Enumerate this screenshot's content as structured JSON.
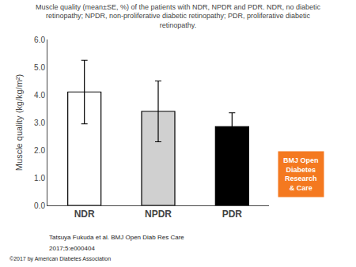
{
  "chart_data": {
    "type": "bar",
    "title": "Muscle quality (mean±SE, %) of the patients with NDR, NPDR and PDR. NDR, no diabetic\nretinopathy; NPDR, non-proliferative diabetic retinopathy; PDR, proliferative diabetic\nretinopathy.",
    "categories": [
      "NDR",
      "NPDR",
      "PDR"
    ],
    "values": [
      4.1,
      3.4,
      2.85
    ],
    "errors": [
      1.15,
      1.1,
      0.5
    ],
    "colors": [
      "#ffffff",
      "#d0d0d0",
      "#000000"
    ],
    "ylabel": "Muscle quality (kg/kg/m²)",
    "ylim": [
      0.0,
      6.0
    ],
    "yticks": [
      {
        "value": 0.0,
        "label": "0.0"
      },
      {
        "value": 1.0,
        "label": "1.0"
      },
      {
        "value": 2.0,
        "label": "2.0"
      },
      {
        "value": 3.0,
        "label": "3.0"
      },
      {
        "value": 4.0,
        "label": "4.0"
      },
      {
        "value": 5.0,
        "label": "5.0"
      },
      {
        "value": 6.0,
        "label": "6.0"
      }
    ],
    "grid": false,
    "annotations": [
      {
        "text": "Tatsuya Fukuda et al. BMJ Open Diab Res Care"
      },
      {
        "text": "2017;5:e000404"
      },
      {
        "text": "©2017 by American Diabetes Association"
      },
      {
        "text": "BMJ Open\nDiabetes\nResearch\n& Care",
        "color": "#f47920"
      }
    ]
  }
}
